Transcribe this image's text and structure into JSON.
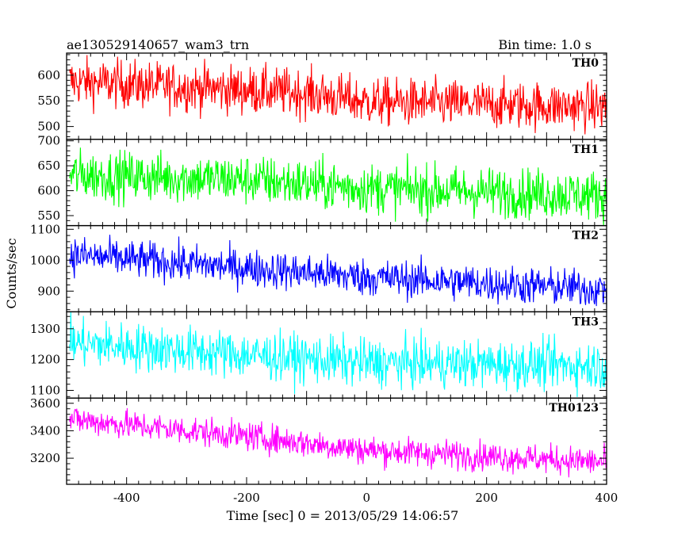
{
  "header": {
    "left": "ae130529140657_wam3_trn",
    "right": "Bin time: 1.0 s"
  },
  "ylabel": "Counts/sec",
  "xlabel": "Time [sec] 0 = 2013/05/29 14:06:57",
  "chart_data": {
    "type": "line",
    "x_range": [
      -500,
      400
    ],
    "x_ticks": [
      -400,
      -200,
      0,
      200,
      400
    ],
    "bin_time_s": 1.0,
    "panels": [
      {
        "name": "TH0",
        "color": "#ff0000",
        "ylim": [
          475,
          643
        ],
        "ticks": [
          500,
          550,
          600
        ],
        "trend": [
          [
            -500,
            588
          ],
          [
            -100,
            565
          ],
          [
            0,
            548
          ],
          [
            400,
            538
          ]
        ],
        "noise_halfwidth": 42
      },
      {
        "name": "TH1",
        "color": "#00ff00",
        "ylim": [
          530,
          703
        ],
        "ticks": [
          550,
          600,
          650,
          700
        ],
        "trend": [
          [
            -500,
            632
          ],
          [
            -200,
            622
          ],
          [
            0,
            605
          ],
          [
            400,
            590
          ]
        ],
        "noise_halfwidth": 45
      },
      {
        "name": "TH2",
        "color": "#0000ff",
        "ylim": [
          833,
          1112
        ],
        "ticks": [
          900,
          1000,
          1100
        ],
        "trend": [
          [
            -500,
            1018
          ],
          [
            -200,
            975
          ],
          [
            0,
            945
          ],
          [
            400,
            905
          ]
        ],
        "noise_halfwidth": 55
      },
      {
        "name": "TH3",
        "color": "#00ffff",
        "ylim": [
          1075,
          1355
        ],
        "ticks": [
          1100,
          1200,
          1300
        ],
        "trend": [
          [
            -500,
            1255
          ],
          [
            -200,
            1215
          ],
          [
            0,
            1190
          ],
          [
            400,
            1180
          ]
        ],
        "noise_halfwidth": 70
      },
      {
        "name": "TH0123",
        "color": "#ff00ff",
        "ylim": [
          3010,
          3638
        ],
        "ticks": [
          3200,
          3400,
          3600
        ],
        "trend": [
          [
            -500,
            3485
          ],
          [
            -200,
            3360
          ],
          [
            0,
            3260
          ],
          [
            400,
            3170
          ]
        ],
        "noise_halfwidth": 95
      }
    ]
  }
}
